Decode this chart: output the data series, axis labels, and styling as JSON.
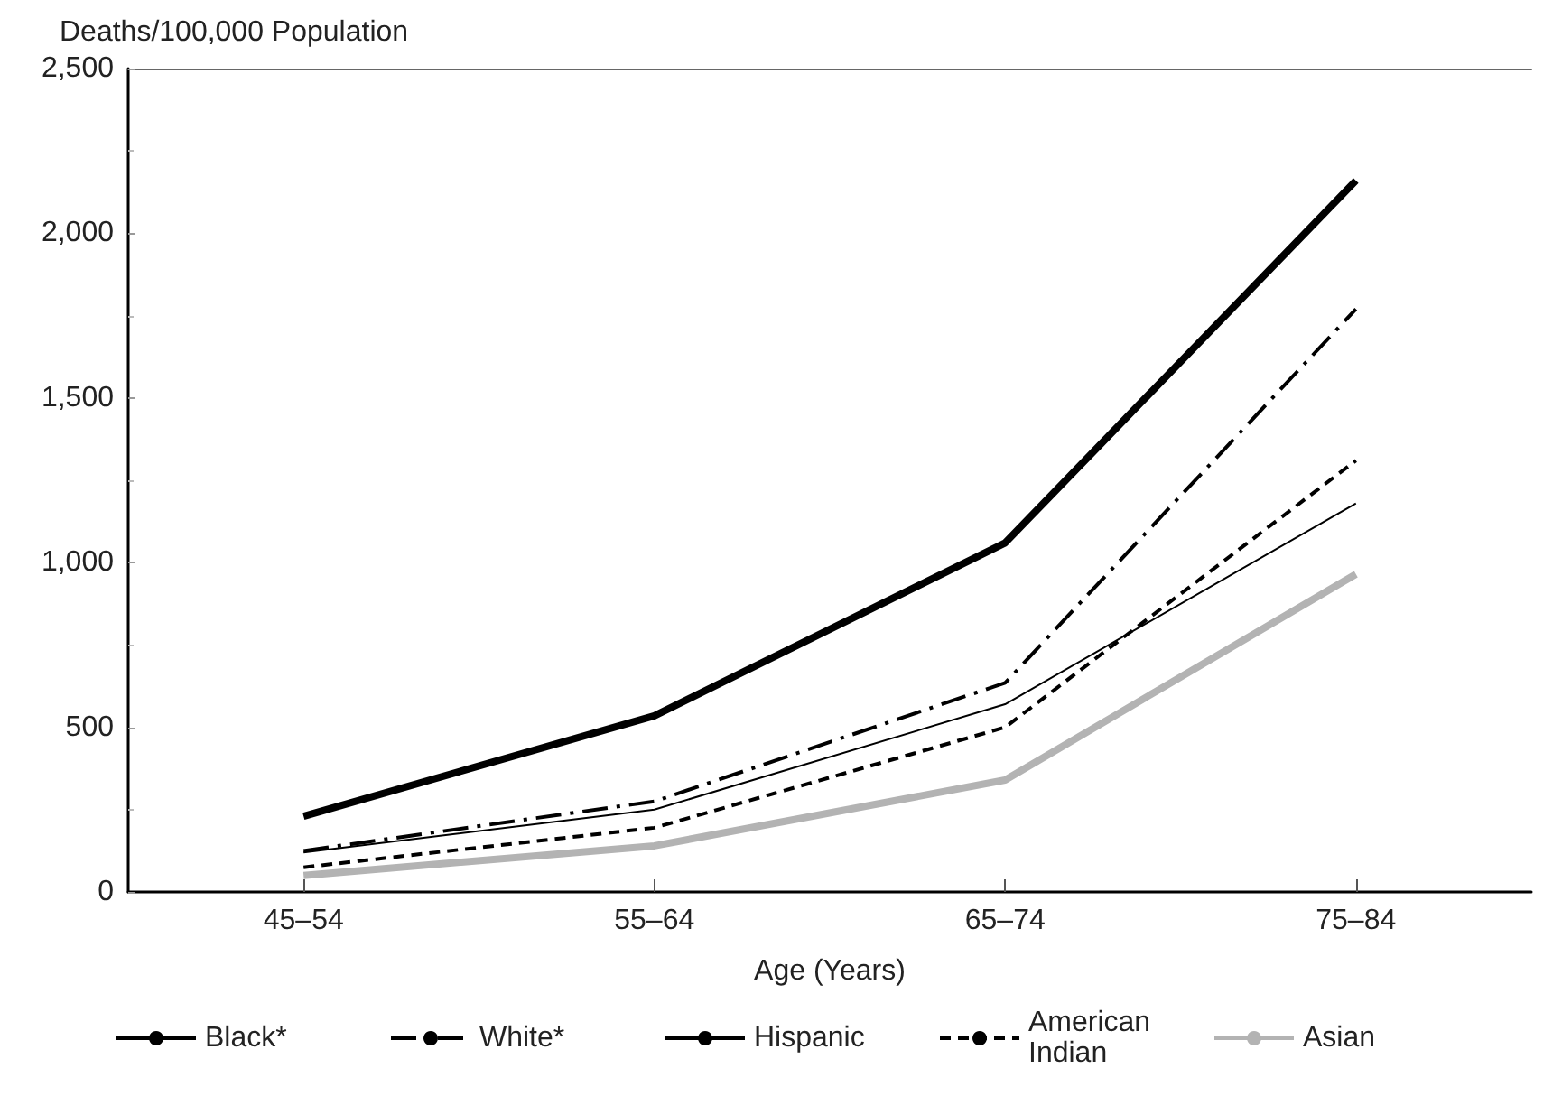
{
  "chart_data": {
    "type": "line",
    "ylabel": "Deaths/100,000 Population",
    "xlabel": "Age (Years)",
    "categories": [
      "45–54",
      "55–64",
      "65–74",
      "75–84"
    ],
    "series": [
      {
        "name": "Black*",
        "color": "#000000",
        "line_style": "solid",
        "values": [
          230,
          535,
          1060,
          2160
        ]
      },
      {
        "name": "White*",
        "color": "#000000",
        "line_style": "dashdot",
        "values": [
          125,
          275,
          635,
          1770
        ]
      },
      {
        "name": "Hispanic",
        "color": "#000000",
        "line_style": "solid",
        "values": [
          120,
          250,
          570,
          1180
        ]
      },
      {
        "name": "American Indian",
        "color": "#000000",
        "line_style": "dashed",
        "values": [
          75,
          195,
          500,
          1310
        ]
      },
      {
        "name": "Asian",
        "color": "#b3b3b3",
        "line_style": "solid",
        "values": [
          50,
          140,
          340,
          965
        ]
      }
    ],
    "ylim": [
      0,
      2500
    ],
    "yticks": [
      0,
      500,
      {
        "value": 1000,
        "label": "1,000"
      },
      {
        "value": 1500,
        "label": "1,500"
      },
      {
        "value": 2000,
        "label": "2,000"
      },
      {
        "value": 2500,
        "label": "2,500"
      }
    ],
    "grid": false,
    "legend": "bottom",
    "marker": "none"
  }
}
